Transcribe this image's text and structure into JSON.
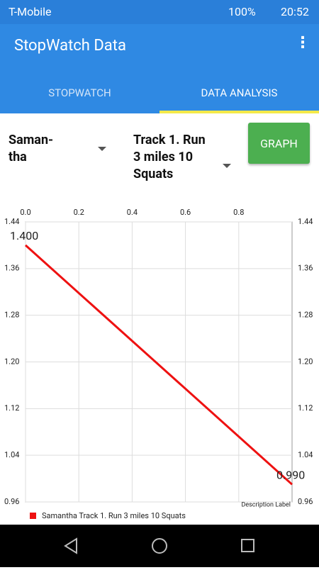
{
  "status_bar": {
    "carrier": "T-Mobile",
    "battery": "100%",
    "time": "20:52"
  },
  "app_bar": {
    "title": "StopWatch Data"
  },
  "tabs": [
    "STOPWATCH",
    "DATA ANALYSIS"
  ],
  "controls": {
    "person_spinner": "Saman-tha",
    "workout_spinner": "Track 1. Run 3 miles 10 Squats",
    "button": "GRAPH"
  },
  "chart_data": {
    "type": "line",
    "x": [
      0,
      1
    ],
    "series": [
      {
        "name": "Samantha Track 1. Run 3 miles 10 Squats",
        "color": "#ee1111",
        "values": [
          1.4,
          0.99
        ],
        "value_labels": [
          "1.400",
          "0.990"
        ]
      }
    ],
    "xlim": [
      0,
      1
    ],
    "xticks": [
      {
        "value": 0,
        "label": "0.0"
      },
      0.2,
      0.4,
      0.6,
      0.8
    ],
    "ylim": [
      0.96,
      1.44
    ],
    "yticks": [
      0.96,
      1.04,
      1.12,
      {
        "value": 1.2,
        "label": "1.20"
      },
      1.28,
      1.36,
      1.44
    ],
    "grid": true,
    "description": "Description Label"
  }
}
